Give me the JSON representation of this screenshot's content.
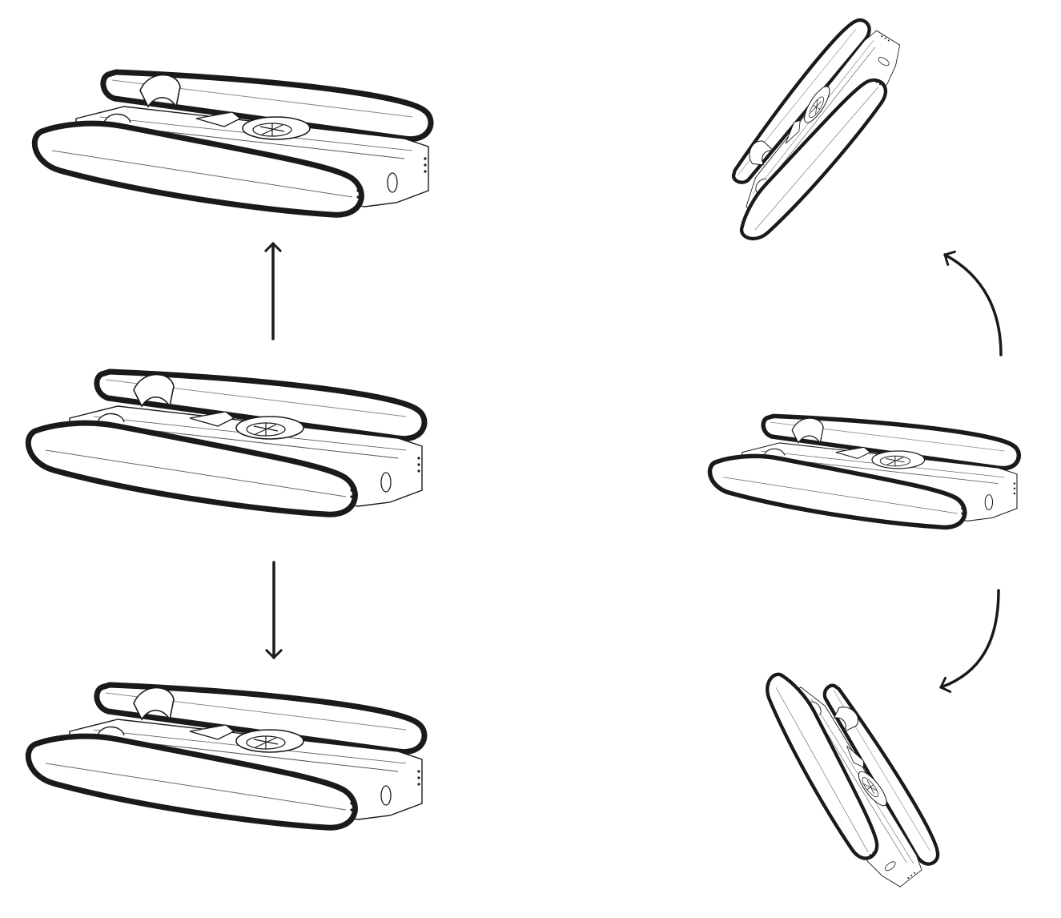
{
  "figure": {
    "subject": "underwater-drone",
    "left_column": {
      "motion": "vertical-translation",
      "views": [
        "drone-raised",
        "drone-neutral",
        "drone-lowered"
      ],
      "arrows": [
        "arrow-up-icon",
        "arrow-down-icon"
      ]
    },
    "right_column": {
      "motion": "pitch-rotation",
      "views": [
        "drone-pitched-up",
        "drone-level",
        "drone-pitched-down"
      ],
      "arrows": [
        "curved-arrow-up-icon",
        "curved-arrow-down-icon"
      ]
    },
    "colors": {
      "outline": "#1a1a1a",
      "body_fill": "#ffffff",
      "detail": "#555555"
    }
  }
}
